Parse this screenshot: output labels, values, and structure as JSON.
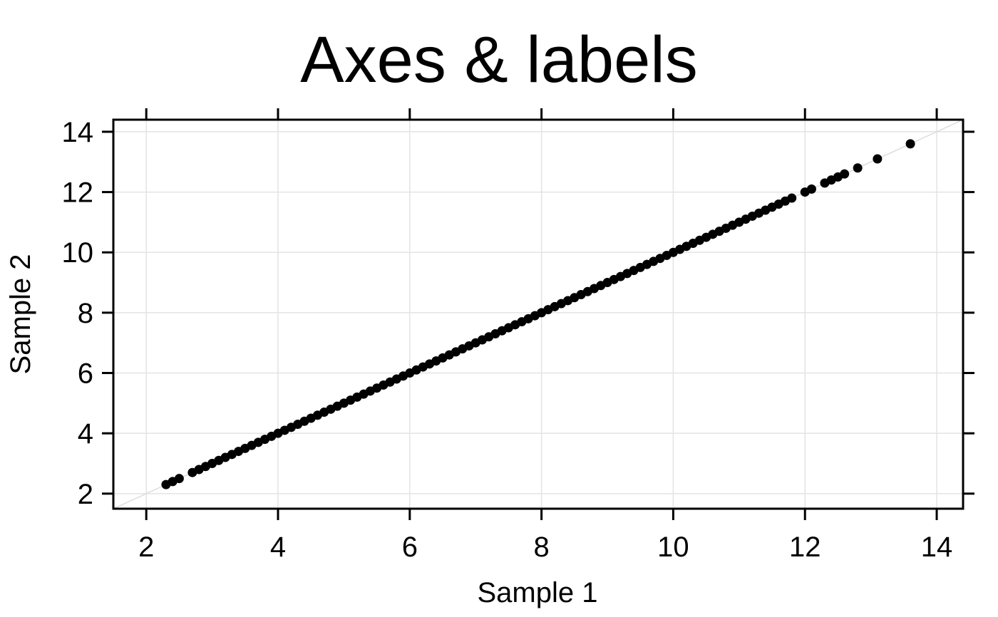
{
  "chart_data": {
    "type": "scatter",
    "title": "Axes & labels",
    "xlabel": "Sample 1",
    "ylabel": "Sample 2",
    "xlim": [
      1.5,
      14.4
    ],
    "ylim": [
      1.5,
      14.4
    ],
    "x_ticks": [
      2,
      4,
      6,
      8,
      10,
      12,
      14
    ],
    "y_ticks": [
      2,
      4,
      6,
      8,
      10,
      12,
      14
    ],
    "x_tick_labels": [
      "2",
      "4",
      "6",
      "8",
      "10",
      "12",
      "14"
    ],
    "y_tick_labels": [
      "2",
      "4",
      "6",
      "8",
      "10",
      "12",
      "14"
    ],
    "grid": true,
    "reference_line": "y = x",
    "point_color": "#000000",
    "series": [
      {
        "x": [
          2.3,
          2.4,
          2.5,
          2.7,
          2.8,
          2.9,
          3.0,
          3.1,
          3.2,
          3.3,
          3.4,
          3.5,
          3.6,
          3.7,
          3.8,
          3.9,
          4.0,
          4.1,
          4.2,
          4.3,
          4.4,
          4.5,
          4.6,
          4.7,
          4.8,
          4.9,
          5.0,
          5.1,
          5.2,
          5.3,
          5.4,
          5.5,
          5.6,
          5.7,
          5.8,
          5.9,
          6.0,
          6.1,
          6.2,
          6.3,
          6.4,
          6.5,
          6.6,
          6.7,
          6.8,
          6.9,
          7.0,
          7.1,
          7.2,
          7.3,
          7.4,
          7.5,
          7.6,
          7.7,
          7.8,
          7.9,
          8.0,
          8.1,
          8.2,
          8.3,
          8.4,
          8.5,
          8.6,
          8.7,
          8.8,
          8.9,
          9.0,
          9.1,
          9.2,
          9.3,
          9.4,
          9.5,
          9.6,
          9.7,
          9.8,
          9.9,
          10.0,
          10.1,
          10.2,
          10.3,
          10.4,
          10.5,
          10.6,
          10.7,
          10.8,
          10.9,
          11.0,
          11.1,
          11.2,
          11.3,
          11.4,
          11.5,
          11.6,
          11.7,
          11.8,
          12.0,
          12.1,
          12.3,
          12.4,
          12.5,
          12.6,
          12.8,
          13.1,
          13.6
        ],
        "y": [
          2.3,
          2.4,
          2.5,
          2.7,
          2.8,
          2.9,
          3.0,
          3.1,
          3.2,
          3.3,
          3.4,
          3.5,
          3.6,
          3.7,
          3.8,
          3.9,
          4.0,
          4.1,
          4.2,
          4.3,
          4.4,
          4.5,
          4.6,
          4.7,
          4.8,
          4.9,
          5.0,
          5.1,
          5.2,
          5.3,
          5.4,
          5.5,
          5.6,
          5.7,
          5.8,
          5.9,
          6.0,
          6.1,
          6.2,
          6.3,
          6.4,
          6.5,
          6.6,
          6.7,
          6.8,
          6.9,
          7.0,
          7.1,
          7.2,
          7.3,
          7.4,
          7.5,
          7.6,
          7.7,
          7.8,
          7.9,
          8.0,
          8.1,
          8.2,
          8.3,
          8.4,
          8.5,
          8.6,
          8.7,
          8.8,
          8.9,
          9.0,
          9.1,
          9.2,
          9.3,
          9.4,
          9.5,
          9.6,
          9.7,
          9.8,
          9.9,
          10.0,
          10.1,
          10.2,
          10.3,
          10.4,
          10.5,
          10.6,
          10.7,
          10.8,
          10.9,
          11.0,
          11.1,
          11.2,
          11.3,
          11.4,
          11.5,
          11.6,
          11.7,
          11.8,
          12.0,
          12.1,
          12.3,
          12.4,
          12.5,
          12.6,
          12.8,
          13.1,
          13.6
        ]
      }
    ]
  }
}
